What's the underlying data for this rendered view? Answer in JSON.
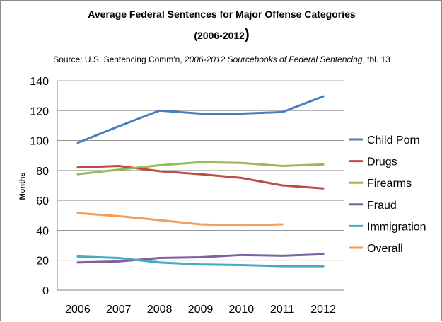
{
  "chart_data": {
    "type": "line",
    "title_line1": "Average Federal Sentences for Major Offense Categories",
    "title_line2": "(2006-2012",
    "title_paren": ")",
    "source_prefix": "Source: U.S. Sentencing Comm'n, ",
    "source_italic": "2006-2012 Sourcebooks of Federal Sentencing",
    "source_suffix": ", tbl. 13",
    "xlabel": "",
    "ylabel": "Months",
    "x": [
      "2006",
      "2007",
      "2008",
      "2009",
      "2010",
      "2011",
      "2012"
    ],
    "ylim": [
      0,
      140
    ],
    "yticks": [
      0,
      20,
      40,
      60,
      80,
      100,
      120,
      140
    ],
    "grid": true,
    "legend_position": "right",
    "series": [
      {
        "name": "Child Porn",
        "color": "#4a7ebb",
        "values": [
          98.5,
          109.5,
          120,
          118,
          118,
          119,
          129.5
        ]
      },
      {
        "name": "Drugs",
        "color": "#be4b48",
        "values": [
          82,
          83,
          79.5,
          77.5,
          75,
          70,
          68
        ]
      },
      {
        "name": "Firearms",
        "color": "#98b954",
        "values": [
          77.5,
          80.5,
          83.5,
          85.5,
          85,
          83,
          84
        ]
      },
      {
        "name": "Fraud",
        "color": "#7d60a0",
        "values": [
          18.5,
          19.2,
          21.5,
          22,
          23.5,
          23,
          24
        ]
      },
      {
        "name": "Immigration",
        "color": "#46aac5",
        "values": [
          22.5,
          21.5,
          18.5,
          17.2,
          16.8,
          16,
          16
        ]
      },
      {
        "name": "Overall",
        "color": "#f59d56",
        "values": [
          51.5,
          49.5,
          46.8,
          44,
          43.2,
          44,
          null
        ]
      }
    ]
  }
}
